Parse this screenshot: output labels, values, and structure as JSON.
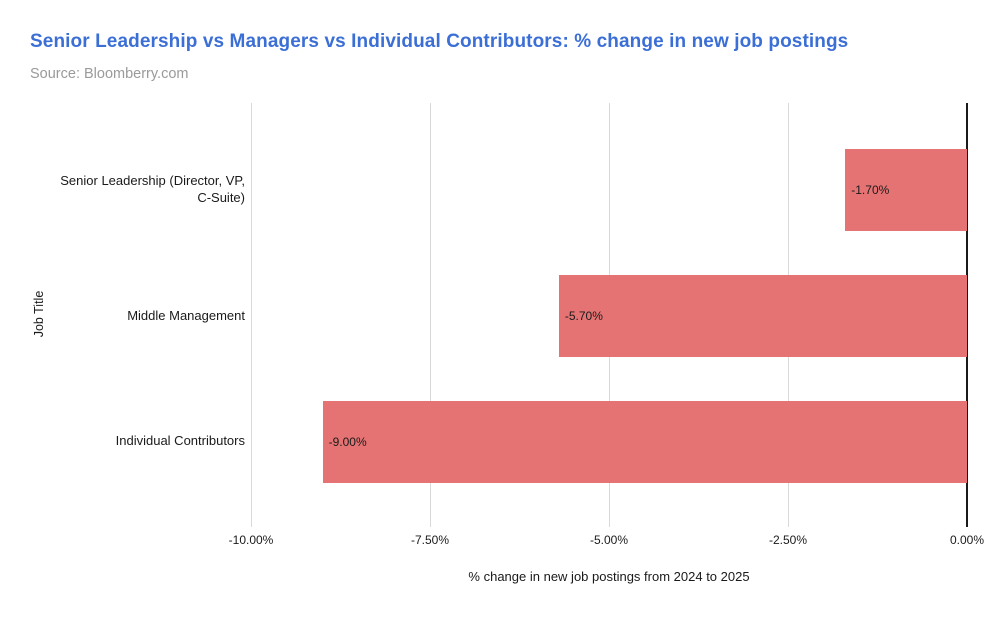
{
  "header": {
    "title": "Senior Leadership vs Managers vs Individual Contributors: % change in new job postings",
    "subtitle": "Source: Bloomberry.com"
  },
  "colors": {
    "title": "#3c6fd6",
    "subtitle": "#9a9a9a",
    "bar": "#e57373",
    "gridline": "#d9d9d9",
    "zero_axis": "#1a1a1a",
    "text": "#1a1a1a",
    "background": "#ffffff"
  },
  "chart_data": {
    "type": "bar",
    "orientation": "horizontal",
    "title": "Senior Leadership vs Managers vs Individual Contributors: % change in new job postings",
    "subtitle": "Source: Bloomberry.com",
    "categories": [
      "Senior Leadership (Director, VP, C-Suite)",
      "Middle Management",
      "Individual Contributors"
    ],
    "values": [
      -1.7,
      -5.7,
      -9.0
    ],
    "value_labels": [
      "-1.70%",
      "-5.70%",
      "-9.00%"
    ],
    "xlabel": "% change in new job postings from 2024 to 2025",
    "ylabel": "Job Title",
    "xlim": [
      -10,
      0
    ],
    "xticks": [
      -10,
      -7.5,
      -5,
      -2.5,
      0
    ],
    "xtick_labels": [
      "-10.00%",
      "-7.50%",
      "-5.00%",
      "-2.50%",
      "0.00%"
    ],
    "grid": true,
    "legend": false
  }
}
